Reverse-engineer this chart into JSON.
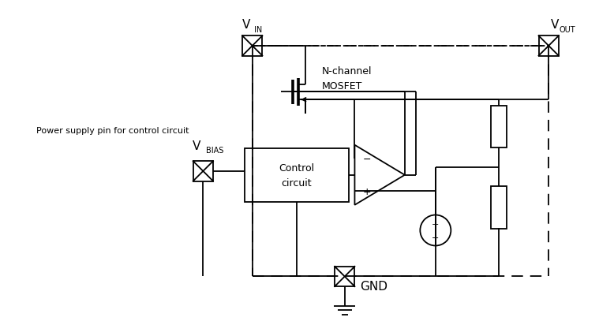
{
  "fig_width": 7.59,
  "fig_height": 4.27,
  "dpi": 100,
  "bg_color": "#ffffff",
  "lc": "#000000",
  "lw": 1.3,
  "labels": {
    "mosfet": "N-channel\nMOSFET",
    "control": "Control\ncircuit",
    "power_supply": "Power supply pin for control circuit",
    "gnd": "GND"
  },
  "font": "DejaVu Sans"
}
